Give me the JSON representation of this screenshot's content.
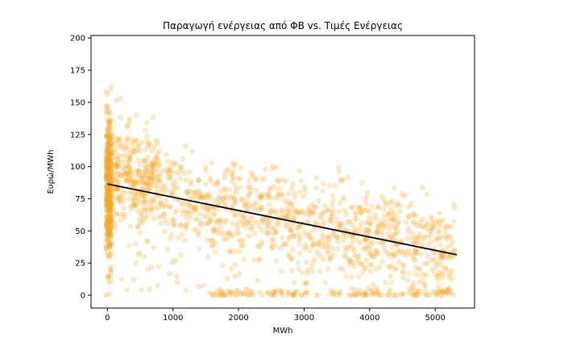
{
  "chart_data": {
    "type": "scatter",
    "title": "Παραγωγή ενέργειας από ΦΒ vs. Τιμές Ενέργειας",
    "xlabel": "MWh",
    "ylabel": "Ευρώ/MWh",
    "xlim": [
      -250,
      5600
    ],
    "ylim": [
      -10,
      202
    ],
    "xticks": [
      0,
      1000,
      2000,
      3000,
      4000,
      5000
    ],
    "yticks": [
      0,
      25,
      50,
      75,
      100,
      125,
      150,
      175,
      200
    ],
    "grid": false,
    "legend": "none",
    "point_color": "#f5a623",
    "point_opacity": 0.25,
    "line_color": "#000000",
    "trend_line": {
      "x": [
        0,
        5330
      ],
      "y": [
        86.5,
        31.5
      ]
    },
    "point_groups": [
      {
        "name": "zero-production cluster",
        "x_range": [
          -20,
          60
        ],
        "y_center": 82,
        "y_spread": 28,
        "y_range": [
          0,
          192
        ],
        "count": 420
      },
      {
        "name": "low-production cluster",
        "x_range": [
          60,
          800
        ],
        "y_center": 90,
        "y_spread": 20,
        "y_range": [
          0,
          192
        ],
        "count": 320
      },
      {
        "name": "main cloud",
        "x_range": [
          800,
          5300
        ],
        "y_center": "86.5 - 0.0103*x",
        "y_spread": 18,
        "y_range": [
          0,
          160
        ],
        "count": 950
      },
      {
        "name": "near-zero price band",
        "x_range": [
          1600,
          5250
        ],
        "y_center": 1,
        "y_spread": 2,
        "y_range": [
          0,
          12
        ],
        "count": 140
      },
      {
        "name": "sparse low outliers",
        "x_range": [
          200,
          5300
        ],
        "y_range": [
          0,
          40
        ],
        "count": 70
      }
    ]
  }
}
